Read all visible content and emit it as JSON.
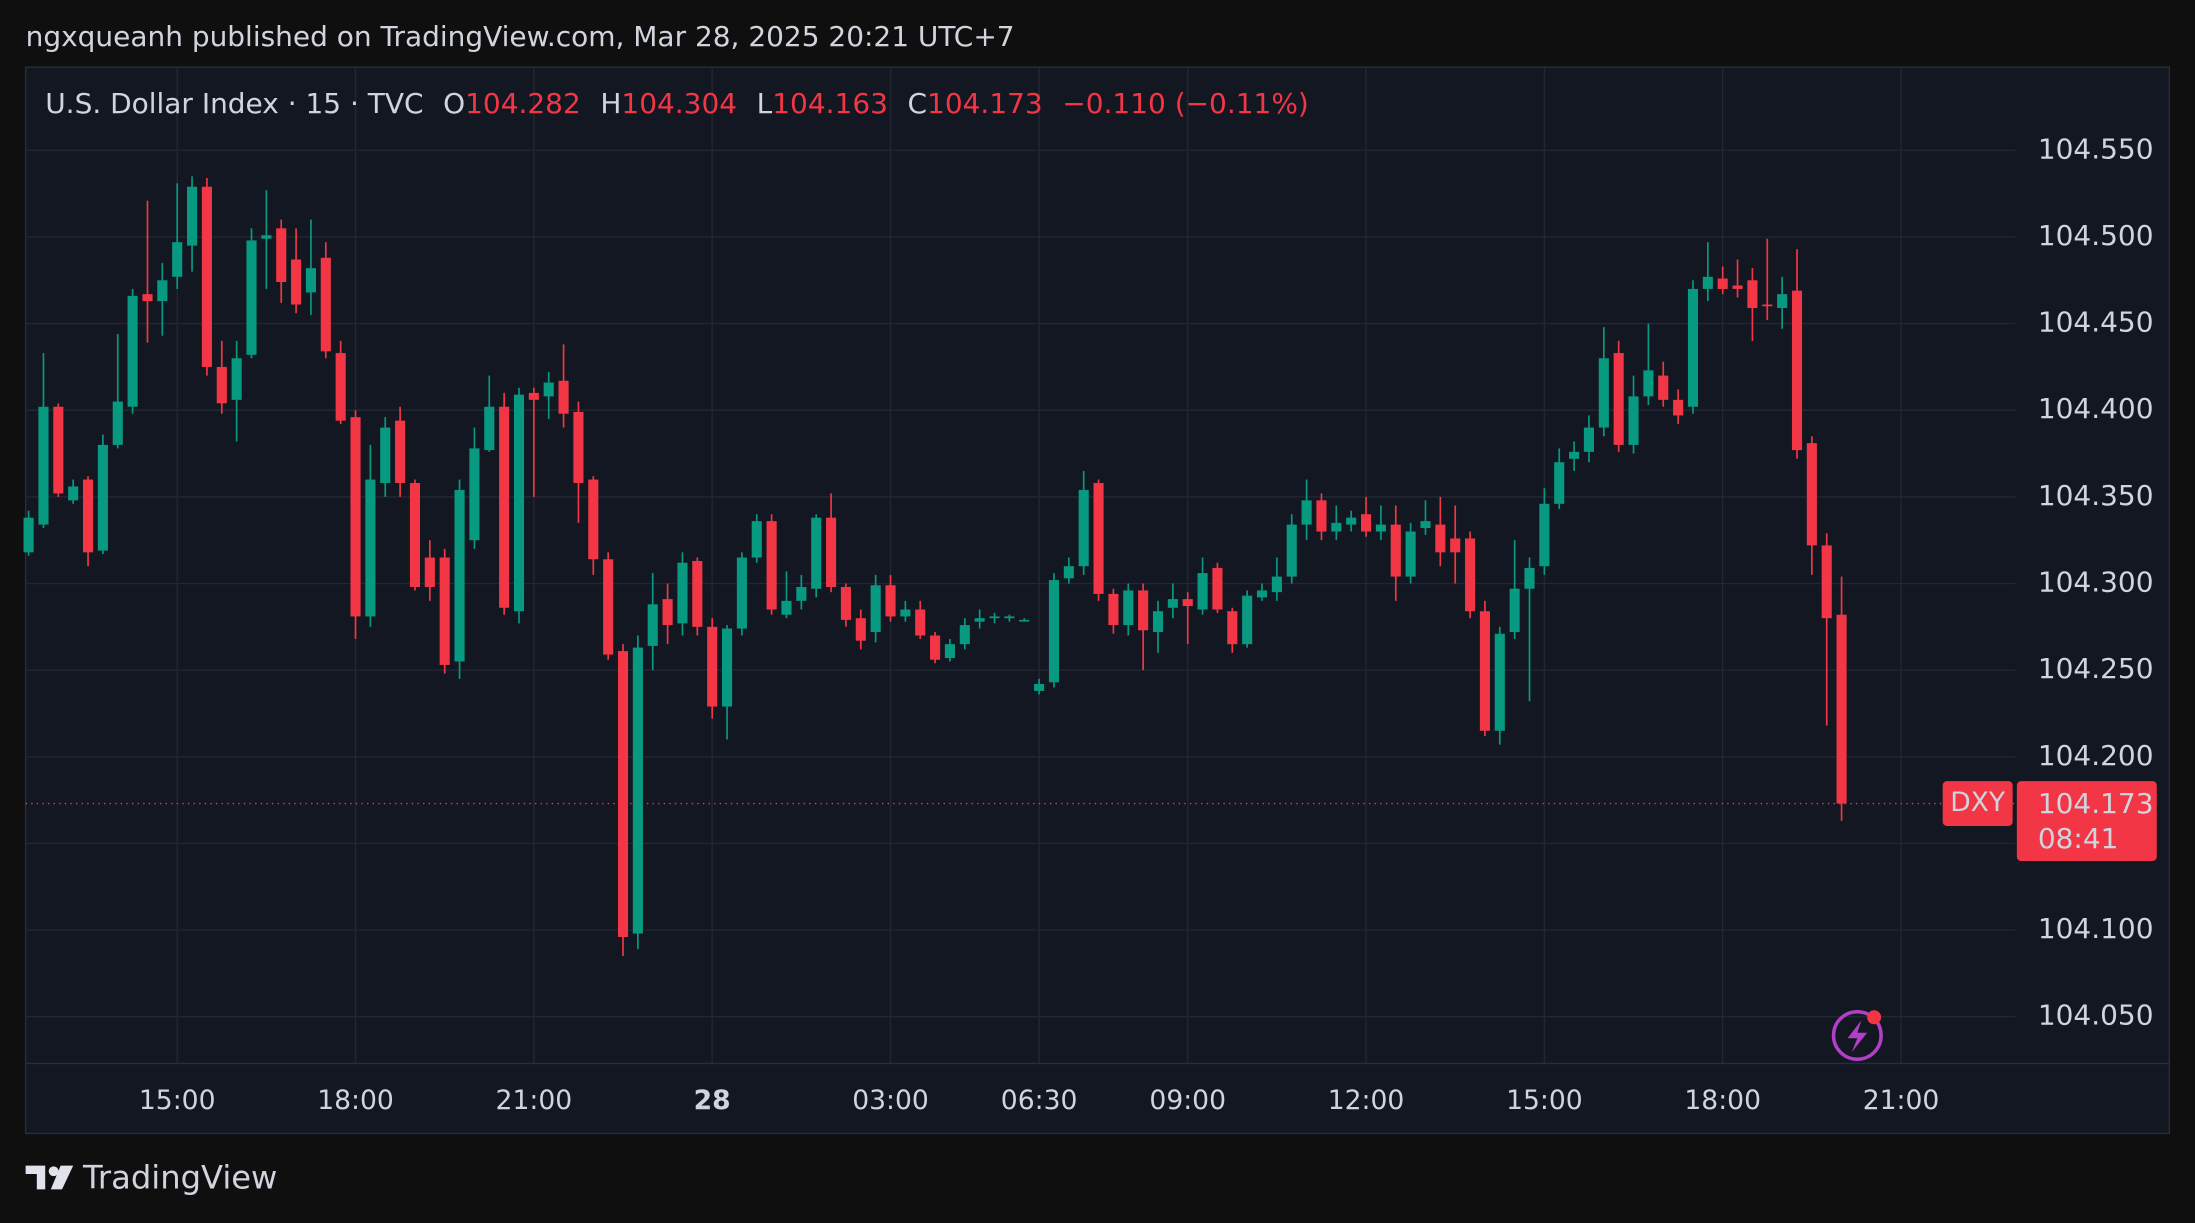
{
  "header": "ngxqueanh published on TradingView.com, Mar 28, 2025 20:21 UTC+7",
  "footer": "TradingView",
  "chart_data": {
    "type": "candlestick",
    "title": "U.S. Dollar Index · 15 · TVC",
    "ohlc": [
      {
        "label": "O",
        "value": 104.282
      },
      {
        "label": "H",
        "value": 104.304
      },
      {
        "label": "L",
        "value": 104.163
      },
      {
        "label": "C",
        "value": 104.173
      }
    ],
    "change": "−0.110 (−0.11%)",
    "up_color": "#089981",
    "down_color": "#f23645",
    "open": [
      104.318,
      104.334,
      104.402,
      104.348,
      104.36,
      104.319,
      104.38,
      104.402,
      104.467,
      104.463,
      104.477,
      104.495,
      104.529,
      104.425,
      104.406,
      104.432,
      104.499,
      104.505,
      104.487,
      104.468,
      104.488,
      104.433,
      104.396,
      104.281,
      104.358,
      104.394,
      104.358,
      104.315,
      104.315,
      104.255,
      104.325,
      104.377,
      104.402,
      104.284,
      104.41,
      104.408,
      104.417,
      104.399,
      104.36,
      104.314,
      104.261,
      104.098,
      104.264,
      104.291,
      104.277,
      104.313,
      104.275,
      104.229,
      104.274,
      104.315,
      104.336,
      104.282,
      104.29,
      104.297,
      104.338,
      104.298,
      104.28,
      104.272,
      104.299,
      104.281,
      104.285,
      104.27,
      104.257,
      104.265,
      104.278,
      104.28,
      104.28,
      104.279,
      104.238,
      104.243,
      104.303,
      104.31,
      104.358,
      104.294,
      104.276,
      104.296,
      104.272,
      104.286,
      104.291,
      104.285,
      104.309,
      104.284,
      104.265,
      104.292,
      104.295,
      104.304,
      104.334,
      104.348,
      104.33,
      104.334,
      104.34,
      104.33,
      104.334,
      104.304,
      104.332,
      104.334,
      104.326,
      104.326,
      104.284,
      104.215,
      104.272,
      104.297,
      104.31,
      104.346,
      104.372,
      104.376,
      104.39,
      104.433,
      104.38,
      104.408,
      104.42,
      104.406,
      104.402,
      104.47,
      104.476,
      104.472,
      104.475,
      104.461,
      104.459,
      104.469,
      104.381,
      104.322,
      104.282
    ],
    "high": [
      104.342,
      104.433,
      104.404,
      104.36,
      104.362,
      104.386,
      104.444,
      104.47,
      104.521,
      104.485,
      104.531,
      104.535,
      104.534,
      104.44,
      104.44,
      104.505,
      104.527,
      104.51,
      104.505,
      104.51,
      104.497,
      104.44,
      104.4,
      104.38,
      104.396,
      104.402,
      104.36,
      104.325,
      104.32,
      104.36,
      104.39,
      104.42,
      104.41,
      104.413,
      104.413,
      104.422,
      104.438,
      104.405,
      104.362,
      104.318,
      104.265,
      104.27,
      104.306,
      104.3,
      104.318,
      104.315,
      104.28,
      104.276,
      104.318,
      104.34,
      104.34,
      104.307,
      104.305,
      104.34,
      104.352,
      104.3,
      104.285,
      104.305,
      104.305,
      104.29,
      104.29,
      104.272,
      104.268,
      104.28,
      104.285,
      104.283,
      104.282,
      104.28,
      104.245,
      104.306,
      104.315,
      104.365,
      104.36,
      104.297,
      104.3,
      104.3,
      104.29,
      104.3,
      104.295,
      104.315,
      104.312,
      104.286,
      104.296,
      104.3,
      104.315,
      104.34,
      104.36,
      104.352,
      104.345,
      104.342,
      104.35,
      104.345,
      104.345,
      104.335,
      104.348,
      104.35,
      104.345,
      104.33,
      104.29,
      104.275,
      104.325,
      104.315,
      104.355,
      104.378,
      104.382,
      104.397,
      104.448,
      104.44,
      104.42,
      104.45,
      104.428,
      104.412,
      104.475,
      104.497,
      104.483,
      104.487,
      104.482,
      104.499,
      104.477,
      104.493,
      104.385,
      104.329,
      104.304
    ],
    "low": [
      104.316,
      104.332,
      104.35,
      104.346,
      104.31,
      104.317,
      104.378,
      104.398,
      104.439,
      104.443,
      104.47,
      104.48,
      104.42,
      104.398,
      104.382,
      104.43,
      104.47,
      104.462,
      104.456,
      104.455,
      104.43,
      104.392,
      104.268,
      104.275,
      104.35,
      104.35,
      104.296,
      104.29,
      104.248,
      104.245,
      104.32,
      104.376,
      104.282,
      104.277,
      104.35,
      104.395,
      104.39,
      104.335,
      104.305,
      104.256,
      104.085,
      104.089,
      104.25,
      104.265,
      104.27,
      104.27,
      104.222,
      104.21,
      104.27,
      104.312,
      104.282,
      104.28,
      104.285,
      104.292,
      104.295,
      104.275,
      104.262,
      104.266,
      104.278,
      104.278,
      104.268,
      104.254,
      104.255,
      104.262,
      104.274,
      104.277,
      104.278,
      104.278,
      104.236,
      104.24,
      104.3,
      104.305,
      104.29,
      104.271,
      104.27,
      104.25,
      104.26,
      104.28,
      104.265,
      104.282,
      104.283,
      104.26,
      104.263,
      104.29,
      104.29,
      104.3,
      104.325,
      104.325,
      104.325,
      104.33,
      104.327,
      104.325,
      104.29,
      104.3,
      104.328,
      104.31,
      104.3,
      104.28,
      104.212,
      104.207,
      104.268,
      104.232,
      104.305,
      104.343,
      104.365,
      104.37,
      104.385,
      104.376,
      104.375,
      104.403,
      104.402,
      104.392,
      104.398,
      104.463,
      104.467,
      104.465,
      104.44,
      104.452,
      104.447,
      104.372,
      104.305,
      104.218,
      104.163
    ],
    "close": [
      104.338,
      104.402,
      104.352,
      104.356,
      104.318,
      104.38,
      104.405,
      104.466,
      104.463,
      104.475,
      104.497,
      104.529,
      104.425,
      104.404,
      104.43,
      104.498,
      104.501,
      104.474,
      104.461,
      104.482,
      104.434,
      104.394,
      104.281,
      104.36,
      104.39,
      104.358,
      104.298,
      104.298,
      104.253,
      104.354,
      104.378,
      104.402,
      104.286,
      104.409,
      104.406,
      104.416,
      104.398,
      104.358,
      104.314,
      104.259,
      104.096,
      104.263,
      104.288,
      104.276,
      104.312,
      104.275,
      104.229,
      104.274,
      104.315,
      104.336,
      104.285,
      104.29,
      104.298,
      104.338,
      104.298,
      104.279,
      104.267,
      104.299,
      104.281,
      104.285,
      104.27,
      104.256,
      104.265,
      104.276,
      104.28,
      104.281,
      104.281,
      104.279,
      104.242,
      104.302,
      104.31,
      104.354,
      104.294,
      104.276,
      104.296,
      104.273,
      104.284,
      104.291,
      104.287,
      104.306,
      104.285,
      104.265,
      104.293,
      104.296,
      104.304,
      104.334,
      104.348,
      104.33,
      104.335,
      104.338,
      104.33,
      104.334,
      104.304,
      104.33,
      104.336,
      104.318,
      104.318,
      104.284,
      104.215,
      104.271,
      104.297,
      104.309,
      104.346,
      104.37,
      104.376,
      104.39,
      104.43,
      104.38,
      104.408,
      104.423,
      104.406,
      104.397,
      104.47,
      104.477,
      104.47,
      104.47,
      104.459,
      104.46,
      104.467,
      104.377,
      104.322,
      104.28,
      104.173
    ],
    "xlim": [
      -0.2,
      133.7
    ],
    "xticks": [
      {
        "value": 10,
        "label": "15:00"
      },
      {
        "value": 22,
        "label": "18:00"
      },
      {
        "value": 34,
        "label": "21:00"
      },
      {
        "value": 46,
        "label": "28"
      },
      {
        "value": 58,
        "label": "03:00"
      },
      {
        "value": 68,
        "label": "06:30"
      },
      {
        "value": 78,
        "label": "09:00"
      },
      {
        "value": 90,
        "label": "12:00"
      },
      {
        "value": 102,
        "label": "15:00"
      },
      {
        "value": 114,
        "label": "18:00"
      },
      {
        "value": 126,
        "label": "21:00"
      }
    ],
    "ylim": [
      104.023,
      104.598
    ],
    "yticks": [
      {
        "value": 104.05,
        "label": "104.050"
      },
      {
        "value": 104.1,
        "label": "104.100"
      },
      {
        "value": 104.15,
        "label": ""
      },
      {
        "value": 104.2,
        "label": "104.200"
      },
      {
        "value": 104.25,
        "label": "104.250"
      },
      {
        "value": 104.3,
        "label": "104.300"
      },
      {
        "value": 104.35,
        "label": "104.350"
      },
      {
        "value": 104.4,
        "label": "104.400"
      },
      {
        "value": 104.45,
        "label": "104.450"
      },
      {
        "value": 104.5,
        "label": "104.500"
      },
      {
        "value": 104.55,
        "label": "104.550"
      }
    ],
    "grid": true,
    "last_price": {
      "symbol": "DXY",
      "value": 104.173,
      "countdown": "08:41"
    }
  }
}
